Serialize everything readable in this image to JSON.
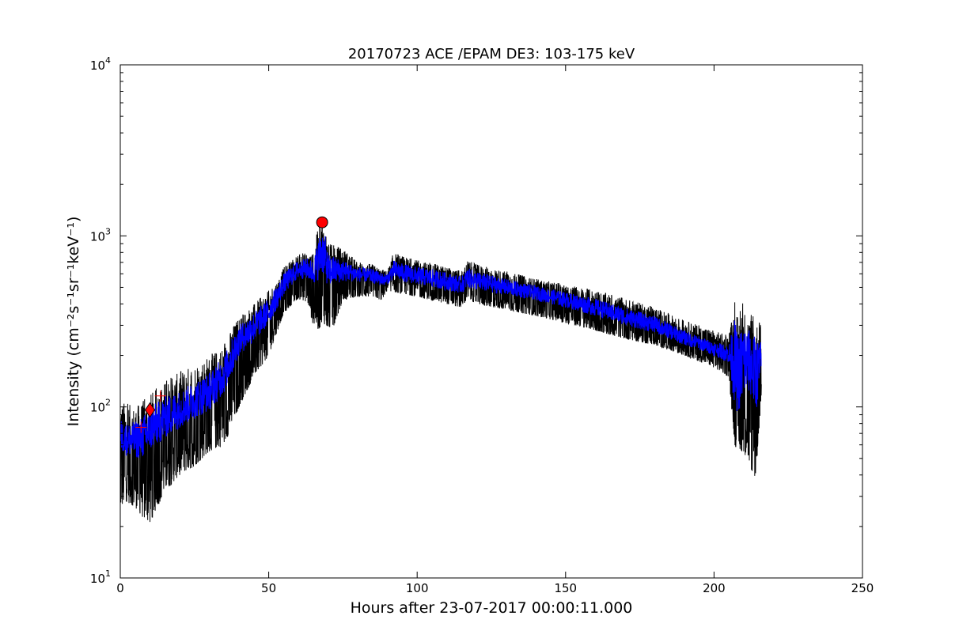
{
  "chart_data": {
    "type": "line",
    "title": "20170723 ACE /EPAM DE3: 103-175 keV",
    "xlabel": "Hours after 23-07-2017 00:00:11.000",
    "ylabel": "Intensity (cm⁻²s⁻¹sr⁻¹keV⁻¹)",
    "xlim": [
      0,
      250
    ],
    "ylim": [
      10,
      10000
    ],
    "yscale": "log",
    "grid": false,
    "x_ticks": [
      "0",
      "50",
      "100",
      "150",
      "200",
      "250"
    ],
    "y_ticks": [
      {
        "value": 10,
        "base": "10",
        "exp": "1"
      },
      {
        "value": 100,
        "base": "10",
        "exp": "2"
      },
      {
        "value": 1000,
        "base": "10",
        "exp": "3"
      },
      {
        "value": 10000,
        "base": "10",
        "exp": "4"
      }
    ],
    "series": [
      {
        "role": "envelope",
        "color": "#000000",
        "x": [
          0,
          2,
          5,
          8,
          10,
          15,
          20,
          25,
          30,
          35,
          38,
          40,
          45,
          50,
          53,
          55,
          58,
          60,
          63,
          65,
          66,
          67,
          68,
          69,
          70,
          72,
          75,
          80,
          85,
          88,
          90,
          92,
          95,
          100,
          105,
          110,
          115,
          117,
          120,
          130,
          140,
          150,
          160,
          170,
          180,
          190,
          200,
          205,
          207,
          208,
          210,
          212,
          214,
          216
        ],
        "upper": [
          110,
          105,
          100,
          110,
          120,
          140,
          160,
          180,
          200,
          230,
          300,
          340,
          400,
          480,
          560,
          650,
          740,
          780,
          800,
          780,
          1000,
          1150,
          1250,
          1150,
          900,
          880,
          850,
          700,
          680,
          640,
          620,
          800,
          760,
          720,
          690,
          660,
          620,
          720,
          680,
          620,
          560,
          520,
          480,
          430,
          380,
          320,
          280,
          260,
          410,
          330,
          420,
          350,
          330,
          300
        ],
        "lower": [
          25,
          28,
          26,
          22,
          21,
          32,
          40,
          45,
          55,
          60,
          80,
          100,
          150,
          200,
          280,
          350,
          400,
          430,
          410,
          300,
          290,
          280,
          320,
          300,
          280,
          300,
          420,
          440,
          440,
          420,
          480,
          470,
          460,
          440,
          420,
          400,
          380,
          430,
          400,
          370,
          340,
          310,
          280,
          250,
          230,
          200,
          170,
          150,
          60,
          55,
          55,
          45,
          37,
          120
        ]
      },
      {
        "role": "smoothed",
        "color": "#0000ff",
        "x": [
          0,
          2,
          5,
          8,
          10,
          15,
          20,
          25,
          30,
          35,
          38,
          40,
          45,
          50,
          53,
          55,
          58,
          60,
          63,
          65,
          66,
          67,
          68,
          69,
          70,
          72,
          75,
          80,
          85,
          88,
          90,
          92,
          95,
          100,
          105,
          110,
          115,
          117,
          120,
          130,
          140,
          150,
          160,
          170,
          180,
          190,
          200,
          205,
          207,
          208,
          210,
          212,
          214,
          216
        ],
        "upper": [
          85,
          80,
          82,
          90,
          100,
          115,
          125,
          140,
          160,
          200,
          260,
          300,
          360,
          430,
          520,
          600,
          680,
          720,
          740,
          720,
          850,
          1000,
          1100,
          1000,
          780,
          760,
          720,
          660,
          640,
          610,
          600,
          720,
          690,
          660,
          640,
          610,
          580,
          650,
          620,
          560,
          510,
          470,
          430,
          380,
          340,
          280,
          240,
          230,
          330,
          260,
          320,
          280,
          260,
          240
        ],
        "lower": [
          55,
          52,
          50,
          50,
          55,
          65,
          75,
          85,
          95,
          120,
          160,
          200,
          240,
          300,
          380,
          450,
          520,
          560,
          560,
          520,
          540,
          560,
          600,
          560,
          500,
          520,
          540,
          540,
          530,
          510,
          520,
          560,
          540,
          520,
          500,
          480,
          460,
          500,
          480,
          450,
          420,
          380,
          340,
          300,
          270,
          230,
          200,
          180,
          100,
          90,
          110,
          120,
          90,
          140
        ]
      }
    ],
    "markers": [
      {
        "shape": "cross",
        "x": 7,
        "y": 76,
        "color": "#ff0000"
      },
      {
        "shape": "diamond",
        "x": 10,
        "y": 96,
        "color": "#ff0000"
      },
      {
        "shape": "cross",
        "x": 13.5,
        "y": 116,
        "color": "#ff0000"
      },
      {
        "shape": "circle",
        "x": 68,
        "y": 1200,
        "color": "#ff0000"
      }
    ]
  }
}
